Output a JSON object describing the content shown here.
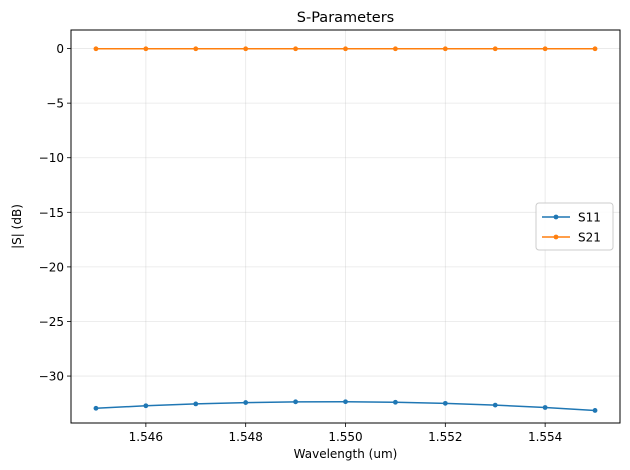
{
  "chart_data": {
    "type": "line",
    "title": "S-Parameters",
    "xlabel": "Wavelength (um)",
    "ylabel": "|S| (dB)",
    "xlim": [
      1.5445,
      1.5555
    ],
    "ylim": [
      -34.3,
      1.7
    ],
    "xticks": [
      1.546,
      1.548,
      1.55,
      1.552,
      1.554
    ],
    "xtick_labels": [
      "1.546",
      "1.548",
      "1.550",
      "1.552",
      "1.554"
    ],
    "yticks": [
      0,
      -5,
      -10,
      -15,
      -20,
      -25,
      -30
    ],
    "ytick_labels": [
      "0",
      "−5",
      "−10",
      "−15",
      "−20",
      "−25",
      "−30"
    ],
    "grid": true,
    "legend_position": "center-right",
    "x": [
      1.545,
      1.546,
      1.547,
      1.548,
      1.549,
      1.55,
      1.551,
      1.552,
      1.553,
      1.554,
      1.555
    ],
    "series": [
      {
        "name": "S11",
        "color": "#1f77b4",
        "values": [
          -32.95,
          -32.72,
          -32.55,
          -32.43,
          -32.36,
          -32.35,
          -32.4,
          -32.5,
          -32.66,
          -32.88,
          -33.15
        ]
      },
      {
        "name": "S21",
        "color": "#ff7f0e",
        "values": [
          -0.02,
          -0.02,
          -0.02,
          -0.02,
          -0.02,
          -0.02,
          -0.02,
          -0.02,
          -0.02,
          -0.02,
          -0.02
        ]
      }
    ]
  }
}
